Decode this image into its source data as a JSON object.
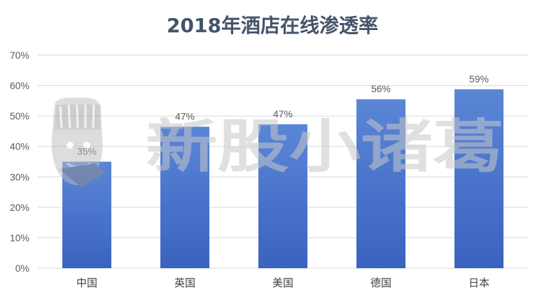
{
  "chart_data": {
    "type": "bar",
    "title": "2018年酒店在线渗透率",
    "categories": [
      "中国",
      "英国",
      "美国",
      "德国",
      "日本"
    ],
    "values": [
      0.35,
      0.465,
      0.473,
      0.555,
      0.588
    ],
    "data_labels": [
      "35%",
      "47%",
      "47%",
      "56%",
      "59%"
    ],
    "ylim": [
      0,
      0.7
    ],
    "y_ticks": [
      0,
      0.1,
      0.2,
      0.3,
      0.4,
      0.5,
      0.6,
      0.7
    ],
    "y_tick_labels": [
      "0%",
      "10%",
      "20%",
      "30%",
      "40%",
      "50%",
      "60%",
      "70%"
    ],
    "grid": true,
    "bar_color_top": "#5b86d6",
    "bar_color_bottom": "#3a63c0",
    "grid_color": "#d9d9d9"
  },
  "watermark": {
    "text": "新股小诸葛",
    "logo_icon": "cartoon-mascot-logo"
  }
}
